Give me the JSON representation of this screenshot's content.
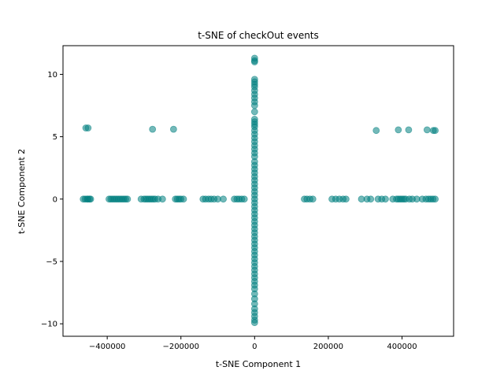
{
  "chart_data": {
    "type": "scatter",
    "title": "t-SNE of checkOut events",
    "xlabel": "t-SNE Component 1",
    "ylabel": "t-SNE Component 2",
    "xlim": [
      -520000,
      540000
    ],
    "ylim": [
      -11,
      12.3
    ],
    "xticks": [
      -400000,
      -200000,
      0,
      200000,
      400000
    ],
    "xtick_labels": [
      "−400000",
      "−200000",
      "0",
      "200000",
      "400000"
    ],
    "yticks": [
      -10,
      -5,
      0,
      5,
      10
    ],
    "ytick_labels": [
      "−10",
      "−5",
      "0",
      "5",
      "10"
    ],
    "grid": false,
    "marker_color": "#008080",
    "marker_alpha": 0.55,
    "series": [
      {
        "points": [
          [
            -465000,
            0
          ],
          [
            -460000,
            0
          ],
          [
            -455000,
            0
          ],
          [
            -452000,
            0
          ],
          [
            -448000,
            0
          ],
          [
            -445000,
            0
          ],
          [
            -395000,
            0
          ],
          [
            -390000,
            0
          ],
          [
            -385000,
            0
          ],
          [
            -380000,
            0
          ],
          [
            -375000,
            0
          ],
          [
            -370000,
            0
          ],
          [
            -365000,
            0
          ],
          [
            -360000,
            0
          ],
          [
            -355000,
            0
          ],
          [
            -350000,
            0
          ],
          [
            -345000,
            0
          ],
          [
            -308000,
            0
          ],
          [
            -300000,
            0
          ],
          [
            -295000,
            0
          ],
          [
            -290000,
            0
          ],
          [
            -285000,
            0
          ],
          [
            -280000,
            0
          ],
          [
            -275000,
            0
          ],
          [
            -270000,
            0
          ],
          [
            -262000,
            0
          ],
          [
            -250000,
            0
          ],
          [
            -215000,
            0
          ],
          [
            -210000,
            0
          ],
          [
            -205000,
            0
          ],
          [
            -200000,
            0
          ],
          [
            -193000,
            0
          ],
          [
            -140000,
            0
          ],
          [
            -133000,
            0
          ],
          [
            -125000,
            0
          ],
          [
            -118000,
            0
          ],
          [
            -110000,
            0
          ],
          [
            -100000,
            0
          ],
          [
            -85000,
            0
          ],
          [
            -55000,
            0
          ],
          [
            -48000,
            0
          ],
          [
            -42000,
            0
          ],
          [
            -35000,
            0
          ],
          [
            -28000,
            0
          ],
          [
            135000,
            0
          ],
          [
            142000,
            0
          ],
          [
            150000,
            0
          ],
          [
            158000,
            0
          ],
          [
            210000,
            0
          ],
          [
            220000,
            0
          ],
          [
            230000,
            0
          ],
          [
            240000,
            0
          ],
          [
            248000,
            0
          ],
          [
            290000,
            0
          ],
          [
            305000,
            0
          ],
          [
            315000,
            0
          ],
          [
            335000,
            0
          ],
          [
            345000,
            0
          ],
          [
            355000,
            0
          ],
          [
            375000,
            0
          ],
          [
            385000,
            0
          ],
          [
            390000,
            0
          ],
          [
            395000,
            0
          ],
          [
            400000,
            0
          ],
          [
            405000,
            0
          ],
          [
            410000,
            0
          ],
          [
            420000,
            0
          ],
          [
            428000,
            0
          ],
          [
            440000,
            0
          ],
          [
            455000,
            0
          ],
          [
            465000,
            0
          ],
          [
            472000,
            0
          ],
          [
            478000,
            0
          ],
          [
            484000,
            0
          ],
          [
            490000,
            0
          ],
          [
            -458000,
            5.7
          ],
          [
            -452000,
            5.7
          ],
          [
            -277000,
            5.6
          ],
          [
            -220000,
            5.6
          ],
          [
            330000,
            5.5
          ],
          [
            390000,
            5.55
          ],
          [
            418000,
            5.55
          ],
          [
            468000,
            5.55
          ],
          [
            485000,
            5.5
          ],
          [
            490000,
            5.5
          ],
          [
            0,
            11.3
          ],
          [
            0,
            11.1
          ],
          [
            0,
            11.0
          ],
          [
            0,
            9.6
          ],
          [
            0,
            9.4
          ],
          [
            0,
            9.2
          ],
          [
            0,
            9.0
          ],
          [
            0,
            8.7
          ],
          [
            0,
            8.4
          ],
          [
            0,
            8.1
          ],
          [
            0,
            7.8
          ],
          [
            0,
            7.5
          ],
          [
            0,
            7.0
          ],
          [
            0,
            6.4
          ],
          [
            0,
            6.2
          ],
          [
            0,
            6.0
          ],
          [
            0,
            5.8
          ],
          [
            0,
            5.5
          ],
          [
            0,
            5.2
          ],
          [
            0,
            4.9
          ],
          [
            0,
            4.6
          ],
          [
            0,
            4.3
          ],
          [
            0,
            4.0
          ],
          [
            0,
            3.7
          ],
          [
            0,
            3.4
          ],
          [
            0,
            3.0
          ],
          [
            0,
            2.7
          ],
          [
            0,
            2.4
          ],
          [
            0,
            2.1
          ],
          [
            0,
            1.8
          ],
          [
            0,
            1.5
          ],
          [
            0,
            1.2
          ],
          [
            0,
            0.9
          ],
          [
            0,
            0.6
          ],
          [
            0,
            0.3
          ],
          [
            0,
            0.0
          ],
          [
            0,
            -0.3
          ],
          [
            0,
            -0.6
          ],
          [
            0,
            -0.9
          ],
          [
            0,
            -1.2
          ],
          [
            0,
            -1.5
          ],
          [
            0,
            -1.8
          ],
          [
            0,
            -2.1
          ],
          [
            0,
            -2.4
          ],
          [
            0,
            -2.7
          ],
          [
            0,
            -3.0
          ],
          [
            0,
            -3.3
          ],
          [
            0,
            -3.6
          ],
          [
            0,
            -3.9
          ],
          [
            0,
            -4.2
          ],
          [
            0,
            -4.5
          ],
          [
            0,
            -4.8
          ],
          [
            0,
            -5.1
          ],
          [
            0,
            -5.4
          ],
          [
            0,
            -5.7
          ],
          [
            0,
            -6.0
          ],
          [
            0,
            -6.3
          ],
          [
            0,
            -6.6
          ],
          [
            0,
            -6.9
          ],
          [
            0,
            -7.2
          ],
          [
            0,
            -7.6
          ],
          [
            0,
            -8.0
          ],
          [
            0,
            -8.4
          ],
          [
            0,
            -8.8
          ],
          [
            0,
            -9.1
          ],
          [
            0,
            -9.4
          ],
          [
            0,
            -9.7
          ],
          [
            0,
            -9.9
          ]
        ]
      }
    ]
  }
}
